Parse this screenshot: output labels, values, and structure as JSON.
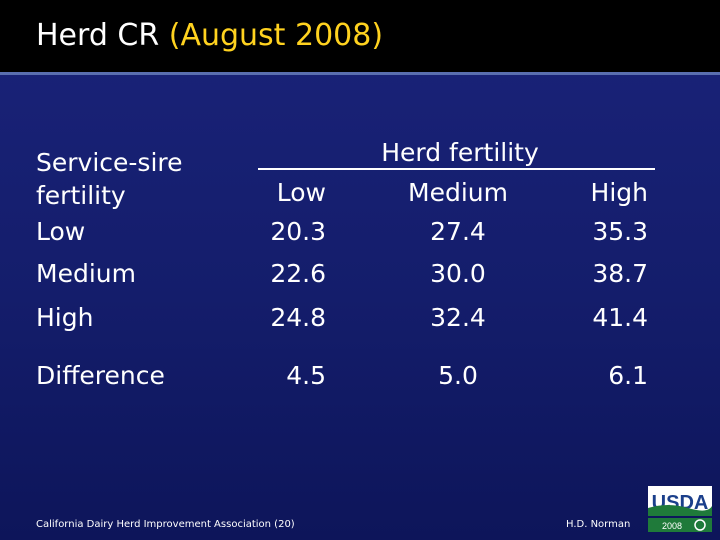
{
  "slide": {
    "title_prefix": "Herd CR",
    "title_highlight": "(August 2008)"
  },
  "table": {
    "row_header": [
      "Service-sire",
      "fertility"
    ],
    "group_header": "Herd fertility",
    "columns": [
      "Low",
      "Medium",
      "High"
    ],
    "rows": [
      {
        "label": "Low",
        "values": [
          "20.3",
          "27.4",
          "35.3"
        ]
      },
      {
        "label": "Medium",
        "values": [
          "22.6",
          "30.0",
          "38.7"
        ]
      },
      {
        "label": "High",
        "values": [
          "24.8",
          "32.4",
          "41.4"
        ]
      }
    ],
    "difference": {
      "label": "Difference",
      "values": [
        "4.5",
        "5.0",
        "6.1"
      ]
    }
  },
  "footer": {
    "left": "California Dairy Herd Improvement Association (20)",
    "right": "H.D. Norman",
    "logo_text": "USDA",
    "logo_year": "2008"
  },
  "colors": {
    "background": "#141d6b",
    "title_bar": "#000000",
    "highlight": "#ffd21f"
  }
}
